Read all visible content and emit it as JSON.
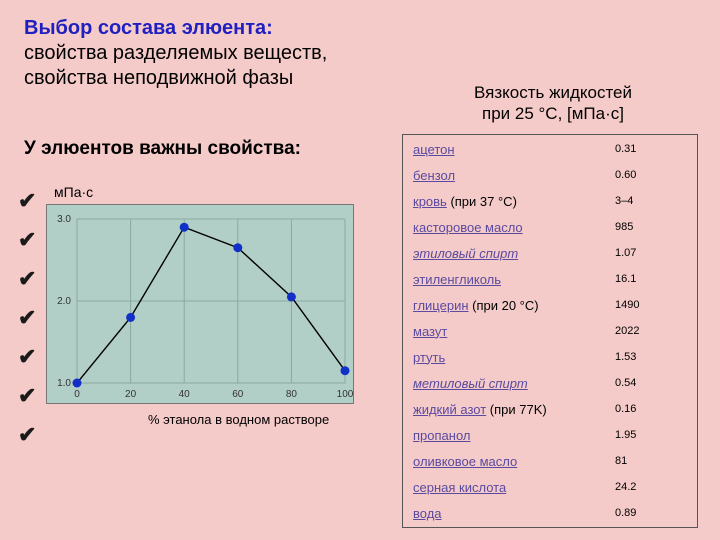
{
  "title": {
    "line1": "Выбор состава элюента:",
    "line2": "свойства разделяемых веществ,",
    "line3": "свойства неподвижной фазы"
  },
  "subtitle": "У элюентов важны свойства:",
  "checkmarks_count": 7,
  "chart": {
    "type": "line",
    "ylabel": "мПа·с",
    "xlabel": "% этанола в водном растворе",
    "x": [
      0,
      20,
      40,
      60,
      80,
      100
    ],
    "y": [
      1.0,
      1.8,
      2.9,
      2.65,
      2.05,
      1.15
    ],
    "xlim": [
      0,
      100
    ],
    "ylim": [
      1.0,
      3.0
    ],
    "ytick_labels": [
      "1.0",
      "2.0",
      "3.0"
    ],
    "xtick_labels": [
      "0",
      "20",
      "40",
      "60",
      "80",
      "100"
    ],
    "background_color": "#b2cfc7",
    "grid_color": "#8aa8a0",
    "line_color": "#000000",
    "line_width": 1.4,
    "marker_color": "#1030c8",
    "marker_radius": 4.5,
    "tick_fontsize": 10,
    "label_fontsize": 13
  },
  "table_title": {
    "line1": "Вязкость жидкостей",
    "line2": "при 25 °С, [мПа·с]"
  },
  "table": {
    "rows": [
      {
        "name": "ацетон",
        "italic": false,
        "note": "",
        "value": "0.31"
      },
      {
        "name": "бензол",
        "italic": false,
        "note": "",
        "value": "0.60"
      },
      {
        "name": "кровь",
        "italic": false,
        "note": " (при 37 °С)",
        "value": "3–4"
      },
      {
        "name": "касторовое масло",
        "italic": false,
        "note": "",
        "value": "985"
      },
      {
        "name": "этиловый спирт",
        "italic": true,
        "note": "",
        "value": "1.07"
      },
      {
        "name": "этиленгликоль",
        "italic": false,
        "note": "",
        "value": "16.1"
      },
      {
        "name": "глицерин",
        "italic": false,
        "note": " (при 20 °С)",
        "value": "1490"
      },
      {
        "name": "мазут",
        "italic": false,
        "note": "",
        "value": "2022"
      },
      {
        "name": "ртуть",
        "italic": false,
        "note": "",
        "value": "1.53"
      },
      {
        "name": "метиловый спирт",
        "italic": true,
        "note": "",
        "value": "0.54"
      },
      {
        "name": "жидкий азот",
        "italic": false,
        "note": " (при 77K)",
        "value": "0.16"
      },
      {
        "name": "пропанол",
        "italic": false,
        "note": "",
        "value": "1.95"
      },
      {
        "name": "оливковое масло",
        "italic": false,
        "note": "",
        "value": "81"
      },
      {
        "name": "серная кислота",
        "italic": false,
        "note": "",
        "value": "24.2"
      },
      {
        "name": "вода",
        "italic": false,
        "note": "",
        "value": "0.89"
      }
    ]
  }
}
